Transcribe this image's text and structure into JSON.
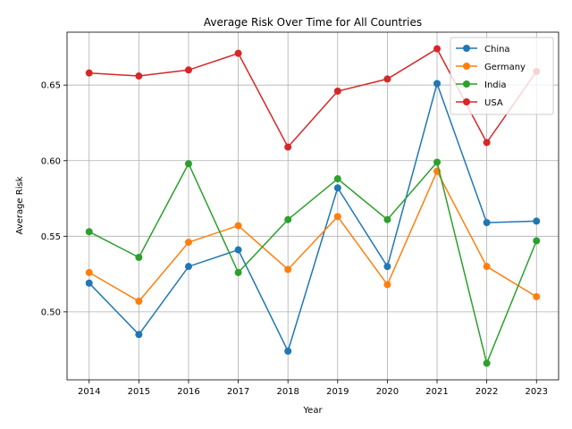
{
  "chart_data": {
    "type": "line",
    "title": "Average Risk Over Time for All Countries",
    "xlabel": "Year",
    "ylabel": "Average Risk",
    "x": [
      2014,
      2015,
      2016,
      2017,
      2018,
      2019,
      2020,
      2021,
      2022,
      2023
    ],
    "y_ticks": [
      "0.50",
      "0.55",
      "0.60",
      "0.65"
    ],
    "y_tick_values": [
      0.5,
      0.55,
      0.6,
      0.65
    ],
    "ylim": [
      0.455,
      0.685
    ],
    "grid": true,
    "legend_position": "top-right",
    "series": [
      {
        "name": "China",
        "color": "#1f77b4",
        "values": [
          0.519,
          0.485,
          0.53,
          0.541,
          0.474,
          0.582,
          0.53,
          0.651,
          0.559,
          0.56
        ]
      },
      {
        "name": "Germany",
        "color": "#ff7f0e",
        "values": [
          0.526,
          0.507,
          0.546,
          0.557,
          0.528,
          0.563,
          0.518,
          0.593,
          0.53,
          0.51
        ]
      },
      {
        "name": "India",
        "color": "#2ca02c",
        "values": [
          0.553,
          0.536,
          0.598,
          0.526,
          0.561,
          0.588,
          0.561,
          0.599,
          0.466,
          0.547
        ]
      },
      {
        "name": "USA",
        "color": "#d62728",
        "values": [
          0.658,
          0.656,
          0.66,
          0.671,
          0.609,
          0.646,
          0.654,
          0.674,
          0.612,
          0.659
        ]
      }
    ]
  }
}
